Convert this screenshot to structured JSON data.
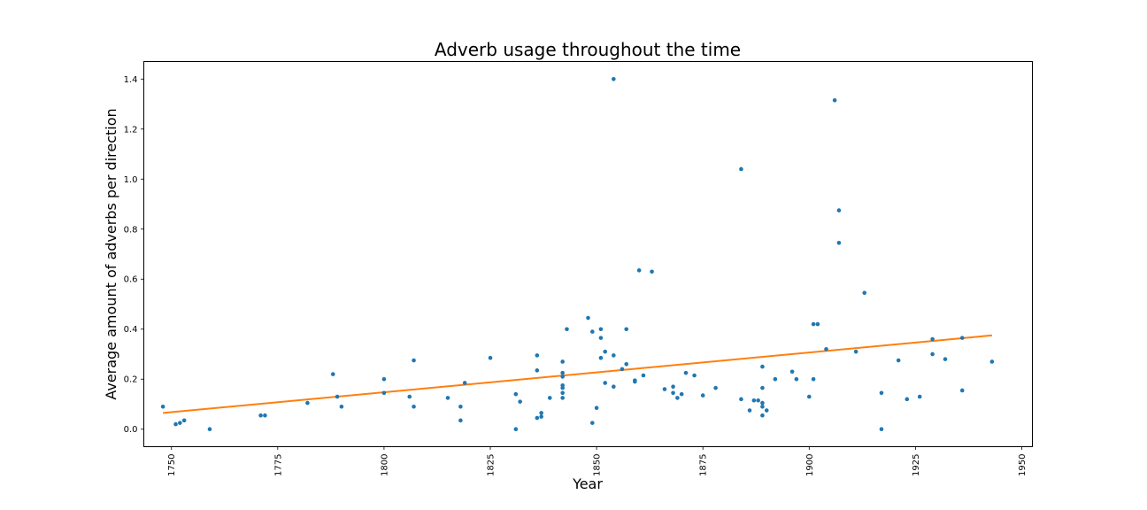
{
  "chart_data": {
    "type": "scatter",
    "title": "Adverb usage throughout the time",
    "xlabel": "Year",
    "ylabel": "Average amount of adverbs per direction",
    "xlim": [
      1743.5,
      1952.5
    ],
    "ylim": [
      -0.07,
      1.47
    ],
    "x_ticks": [
      1750,
      1775,
      1800,
      1825,
      1850,
      1875,
      1900,
      1925,
      1950
    ],
    "y_ticks": [
      0.0,
      0.2,
      0.4,
      0.6,
      0.8,
      1.0,
      1.2,
      1.4
    ],
    "x_tick_labels": [
      "1750",
      "1775",
      "1800",
      "1825",
      "1850",
      "1875",
      "1900",
      "1925",
      "1950"
    ],
    "y_tick_labels": [
      "0.0",
      "0.2",
      "0.4",
      "0.6",
      "0.8",
      "1.0",
      "1.2",
      "1.4"
    ],
    "x_tick_rotation": -90,
    "grid": false,
    "colors": {
      "scatter": "#1f77b4",
      "trend": "#ff7f0e"
    },
    "series": [
      {
        "type": "scatter",
        "points": [
          [
            1748,
            0.09
          ],
          [
            1751,
            0.02
          ],
          [
            1752,
            0.025
          ],
          [
            1753,
            0.035
          ],
          [
            1759,
            0.0
          ],
          [
            1771,
            0.055
          ],
          [
            1772,
            0.055
          ],
          [
            1782,
            0.105
          ],
          [
            1788,
            0.22
          ],
          [
            1789,
            0.13
          ],
          [
            1790,
            0.09
          ],
          [
            1800,
            0.2
          ],
          [
            1800,
            0.145
          ],
          [
            1806,
            0.13
          ],
          [
            1807,
            0.09
          ],
          [
            1807,
            0.275
          ],
          [
            1815,
            0.125
          ],
          [
            1818,
            0.09
          ],
          [
            1818,
            0.035
          ],
          [
            1819,
            0.185
          ],
          [
            1825,
            0.285
          ],
          [
            1831,
            0.14
          ],
          [
            1831,
            0.0
          ],
          [
            1832,
            0.11
          ],
          [
            1836,
            0.295
          ],
          [
            1836,
            0.235
          ],
          [
            1836,
            0.045
          ],
          [
            1837,
            0.065
          ],
          [
            1837,
            0.05
          ],
          [
            1839,
            0.125
          ],
          [
            1842,
            0.225
          ],
          [
            1842,
            0.21
          ],
          [
            1842,
            0.27
          ],
          [
            1842,
            0.175
          ],
          [
            1842,
            0.165
          ],
          [
            1842,
            0.145
          ],
          [
            1842,
            0.125
          ],
          [
            1843,
            0.4
          ],
          [
            1848,
            0.445
          ],
          [
            1849,
            0.39
          ],
          [
            1849,
            0.025
          ],
          [
            1850,
            0.085
          ],
          [
            1851,
            0.4
          ],
          [
            1851,
            0.365
          ],
          [
            1851,
            0.285
          ],
          [
            1852,
            0.31
          ],
          [
            1852,
            0.185
          ],
          [
            1854,
            1.4
          ],
          [
            1854,
            0.295
          ],
          [
            1854,
            0.17
          ],
          [
            1856,
            0.24
          ],
          [
            1857,
            0.4
          ],
          [
            1857,
            0.26
          ],
          [
            1859,
            0.19
          ],
          [
            1859,
            0.195
          ],
          [
            1860,
            0.635
          ],
          [
            1861,
            0.215
          ],
          [
            1863,
            0.63
          ],
          [
            1866,
            0.16
          ],
          [
            1868,
            0.17
          ],
          [
            1868,
            0.145
          ],
          [
            1869,
            0.125
          ],
          [
            1870,
            0.14
          ],
          [
            1871,
            0.225
          ],
          [
            1873,
            0.215
          ],
          [
            1875,
            0.135
          ],
          [
            1878,
            0.165
          ],
          [
            1884,
            1.04
          ],
          [
            1884,
            0.12
          ],
          [
            1886,
            0.075
          ],
          [
            1887,
            0.115
          ],
          [
            1888,
            0.115
          ],
          [
            1889,
            0.25
          ],
          [
            1889,
            0.165
          ],
          [
            1889,
            0.105
          ],
          [
            1889,
            0.09
          ],
          [
            1889,
            0.055
          ],
          [
            1890,
            0.075
          ],
          [
            1892,
            0.2
          ],
          [
            1896,
            0.23
          ],
          [
            1897,
            0.2
          ],
          [
            1900,
            0.13
          ],
          [
            1901,
            0.42
          ],
          [
            1901,
            0.2
          ],
          [
            1902,
            0.42
          ],
          [
            1904,
            0.32
          ],
          [
            1906,
            1.315
          ],
          [
            1907,
            0.875
          ],
          [
            1907,
            0.745
          ],
          [
            1911,
            0.31
          ],
          [
            1913,
            0.545
          ],
          [
            1917,
            0.145
          ],
          [
            1917,
            0.0
          ],
          [
            1921,
            0.275
          ],
          [
            1923,
            0.12
          ],
          [
            1926,
            0.13
          ],
          [
            1929,
            0.36
          ],
          [
            1929,
            0.3
          ],
          [
            1932,
            0.28
          ],
          [
            1936,
            0.365
          ],
          [
            1936,
            0.155
          ],
          [
            1943,
            0.27
          ]
        ]
      },
      {
        "type": "line",
        "points": [
          [
            1748,
            0.065
          ],
          [
            1943,
            0.375
          ]
        ]
      }
    ]
  }
}
